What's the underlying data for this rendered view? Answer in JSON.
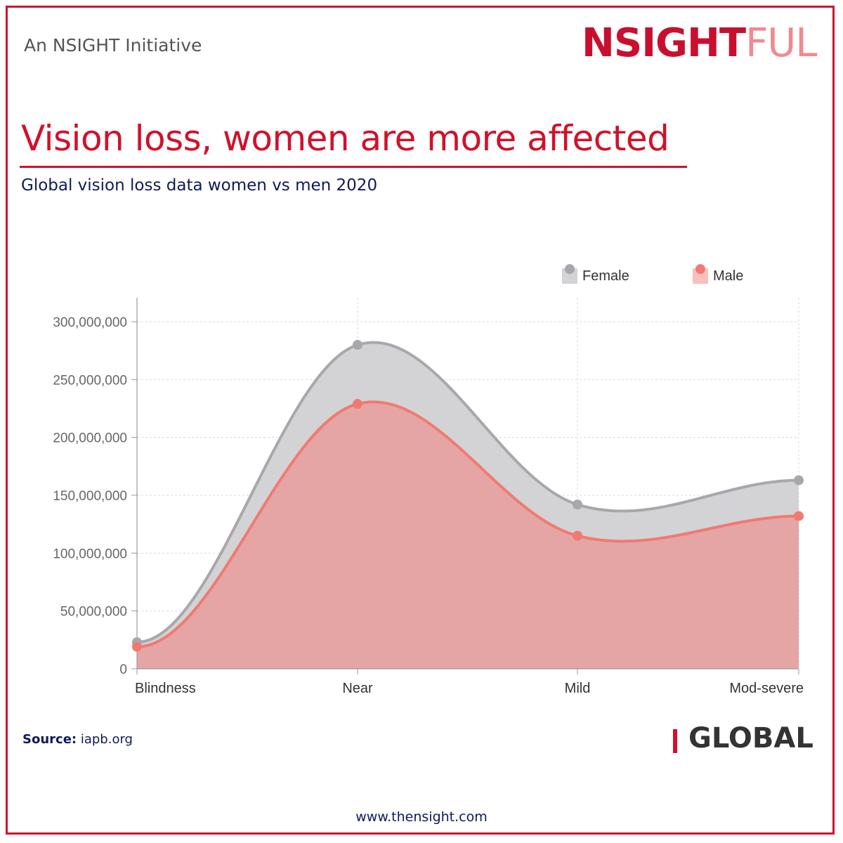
{
  "header": {
    "initiative": "An NSIGHT Initiative",
    "logo_main": "NSIGHT",
    "logo_tail": "FUL"
  },
  "title": "Vision loss, women are more affected",
  "subtitle": "Global vision loss data women vs men 2020",
  "colors": {
    "accent": "#d0112b",
    "navy": "#0e1a5c",
    "female_line": "#a9a7ab",
    "female_fill": "#d3d2d5",
    "male_line": "#f07a72",
    "male_fill": "#e5a5a4"
  },
  "chart_data": {
    "type": "area",
    "categories": [
      "Blindness",
      "Near",
      "Mild",
      "Mod-severe"
    ],
    "series": [
      {
        "name": "Female",
        "values": [
          23000000,
          280000000,
          142000000,
          163000000
        ]
      },
      {
        "name": "Male",
        "values": [
          19000000,
          229000000,
          115000000,
          132000000
        ]
      }
    ],
    "ylim": [
      0,
      300000000
    ],
    "yticks": [
      "0",
      "50,000,000",
      "100,000,000",
      "150,000,000",
      "200,000,000",
      "250,000,000",
      "300,000,000"
    ],
    "ytick_values": [
      0,
      50000000,
      100000000,
      150000000,
      200000000,
      250000000,
      300000000
    ],
    "grid": true,
    "legend_position": "top-right",
    "xlabel": "",
    "ylabel": ""
  },
  "footer": {
    "source_label": "Source:",
    "source_value": "iapb.org",
    "region": "GLOBAL",
    "website": "www.thensight.com"
  }
}
